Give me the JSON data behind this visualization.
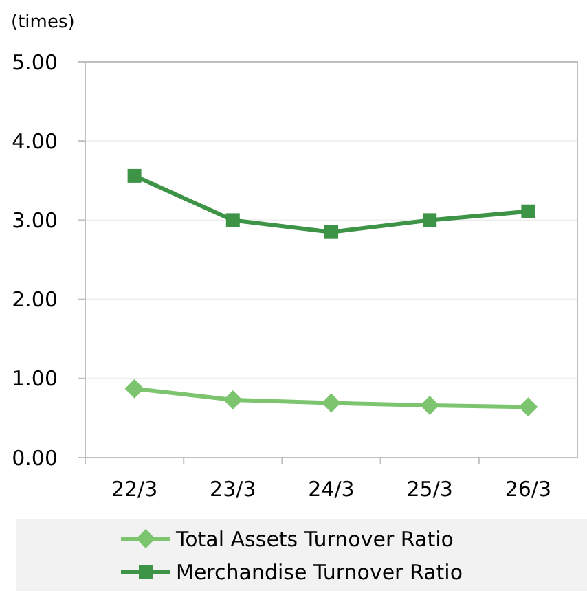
{
  "chart_data": {
    "type": "line",
    "ylabel": "(times)",
    "categories": [
      "22/3",
      "23/3",
      "24/3",
      "25/3",
      "26/3"
    ],
    "series": [
      {
        "name": "Total Assets Turnover Ratio",
        "color": "#7dc46f",
        "marker": "diamond",
        "values": [
          0.87,
          0.73,
          0.69,
          0.66,
          0.64
        ]
      },
      {
        "name": "Merchandise Turnover Ratio",
        "color": "#3d9447",
        "marker": "square",
        "values": [
          3.56,
          3.0,
          2.85,
          3.0,
          3.11
        ]
      }
    ],
    "ylim": [
      0,
      5
    ],
    "yticks": [
      {
        "value": 0,
        "label": "0.00"
      },
      {
        "value": 1,
        "label": "1.00"
      },
      {
        "value": 2,
        "label": "2.00"
      },
      {
        "value": 3,
        "label": "3.00"
      },
      {
        "value": 4,
        "label": "4.00"
      },
      {
        "value": 5,
        "label": "5.00"
      }
    ],
    "grid": "y",
    "legend": "bottom",
    "line_style": "solid"
  }
}
